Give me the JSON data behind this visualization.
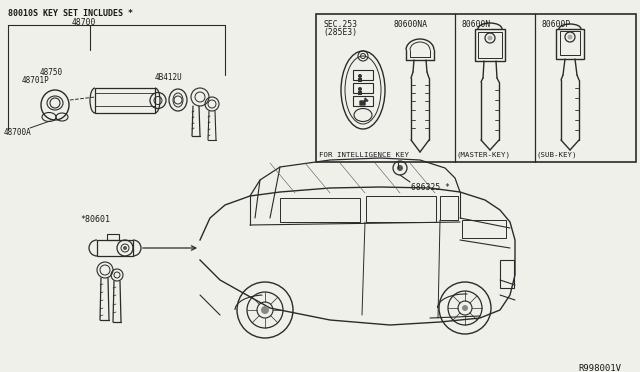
{
  "bg_color": "#f0f0ea",
  "line_color": "#2a2a2a",
  "text_color": "#1a1a1a",
  "diagram_code": "R998001V",
  "labels": {
    "header": "80010S KEY SET INCLUDES *",
    "part_48700": "48700",
    "part_48750": "48750",
    "part_48701P": "48701P",
    "part_48700A": "48700A",
    "part_4B412U": "4B412U",
    "part_686325": "686325 *",
    "part_80601": "*80601",
    "sec_label1": "SEC.253",
    "sec_label2": "(285E3)",
    "part_80600NA": "80600NA",
    "part_80600N": "80600N",
    "part_80600P": "80600P",
    "intel_key": "FOR INTELLIGENCE KEY",
    "master_key": "(MASTER-KEY)",
    "sub_key": "(SUB-KEY)"
  }
}
